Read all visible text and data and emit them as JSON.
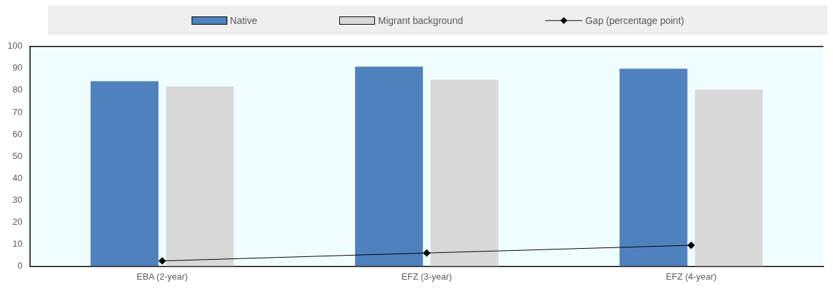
{
  "chart_data": {
    "type": "bar",
    "categories": [
      "EBA (2-year)",
      "EFZ (3-year)",
      "EFZ (4-year)"
    ],
    "series": [
      {
        "name": "Native",
        "color": "#4f81bd",
        "values": [
          84.2,
          90.8,
          89.9
        ]
      },
      {
        "name": "Migrant background",
        "color": "#d9d9d9",
        "values": [
          81.8,
          84.8,
          80.4
        ]
      },
      {
        "name": "Gap (percentage point)",
        "type": "line",
        "color": "#000000",
        "values": [
          2.4,
          6.0,
          9.5
        ],
        "marker": "diamond"
      }
    ],
    "ylim": [
      0,
      100
    ],
    "yticks": [
      0,
      10,
      20,
      30,
      40,
      50,
      60,
      70,
      80,
      90,
      100
    ],
    "grid": false,
    "legend": "top"
  }
}
